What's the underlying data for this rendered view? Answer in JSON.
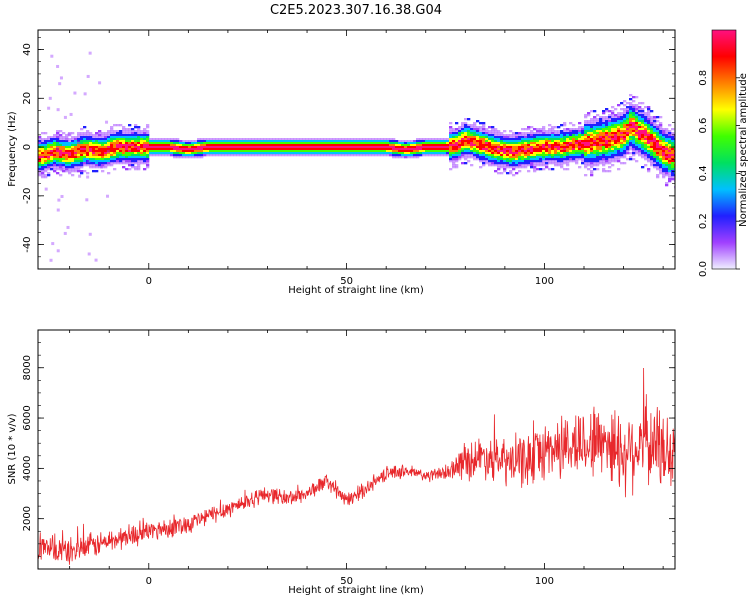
{
  "figure": {
    "title": "C2E5.2023.307.16.38.G04"
  },
  "colorbar": {
    "label": "Normalized spectral amplitude",
    "ticks": [
      "0.0",
      "0.2",
      "0.4",
      "0.6",
      "0.8"
    ],
    "colors": [
      "#f0f0ff",
      "#a040ff",
      "#2020ff",
      "#00c0ff",
      "#00e060",
      "#40ff00",
      "#ffff00",
      "#ff8000",
      "#ff0000",
      "#ff1080"
    ]
  },
  "chart_data": [
    {
      "type": "heatmap",
      "title": "",
      "xlabel": "Height of straight line (km)",
      "ylabel": "Frequency (Hz)",
      "xlim": [
        -28,
        133
      ],
      "ylim": [
        -50,
        48
      ],
      "xticks": [
        "0",
        "50",
        "100"
      ],
      "yticks": [
        "-40",
        "-20",
        "0",
        "20",
        "40"
      ],
      "ridge": {
        "x": [
          -28,
          -24,
          -20,
          -16,
          -12,
          -8,
          -4,
          0,
          5,
          10,
          15,
          20,
          30,
          40,
          50,
          55,
          60,
          65,
          70,
          75,
          78,
          80,
          84,
          88,
          92,
          96,
          100,
          104,
          108,
          112,
          116,
          120,
          122,
          124,
          126,
          128,
          130,
          133
        ],
        "y": [
          -4,
          -2,
          -3,
          -1,
          -2,
          0,
          0,
          0,
          0,
          -1,
          0,
          0,
          0,
          0,
          0,
          0,
          0,
          -1,
          0,
          0,
          1,
          3,
          1,
          -1,
          -2,
          -1,
          0,
          0,
          1,
          2,
          3,
          5,
          9,
          6,
          4,
          1,
          -2,
          -4
        ]
      },
      "colormap_range": [
        0.0,
        1.0
      ]
    },
    {
      "type": "line",
      "title": "",
      "xlabel": "Height of straight line (km)",
      "ylabel": "SNR (10 * v/v)",
      "xlim": [
        -28,
        133
      ],
      "ylim": [
        0,
        9500
      ],
      "xticks": [
        "0",
        "50",
        "100"
      ],
      "yticks": [
        "2000",
        "4000",
        "6000",
        "8000"
      ],
      "series": [
        {
          "color": "#e8282c",
          "trend": {
            "x": [
              -28,
              -20,
              -10,
              0,
              10,
              20,
              30,
              35,
              40,
              45,
              50,
              55,
              60,
              65,
              70,
              75,
              78,
              80,
              85,
              90,
              95,
              100,
              105,
              110,
              115,
              120,
              125,
              128,
              133
            ],
            "y": [
              800,
              700,
              1100,
              1500,
              1800,
              2400,
              3000,
              2800,
              3000,
              3500,
              2700,
              3200,
              3800,
              3900,
              3700,
              3800,
              4100,
              4300,
              4500,
              4200,
              4300,
              4700,
              4900,
              5000,
              5200,
              4600,
              5100,
              4900,
              4500
            ]
          },
          "noise_amplitude": {
            "x": [
              -28,
              0,
              30,
              75,
              80,
              100,
              120,
              133
            ],
            "y": [
              700,
              500,
              400,
              300,
              900,
              1400,
              2000,
              2000
            ]
          }
        }
      ]
    }
  ]
}
